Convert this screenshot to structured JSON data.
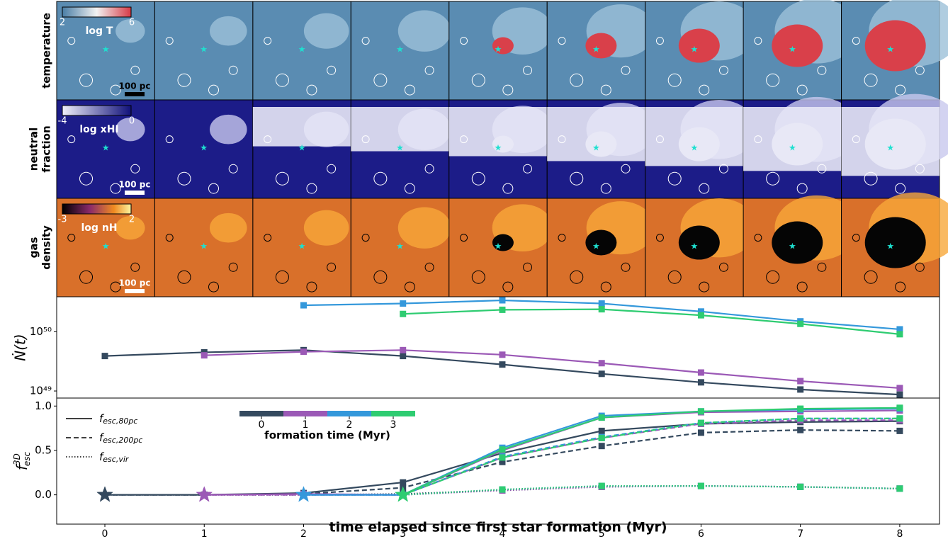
{
  "maps": {
    "rows": [
      {
        "label": [
          "temperature"
        ],
        "colorbar_label": "log T",
        "cbar_ticks": [
          2,
          6
        ],
        "scale_bar": "100 pc"
      },
      {
        "label": [
          "neutral",
          "fraction"
        ],
        "colorbar_label": "log xHI",
        "cbar_ticks": [
          -4,
          0
        ],
        "scale_bar": "100 pc"
      },
      {
        "label": [
          "gas",
          "density"
        ],
        "colorbar_label": "log nH",
        "cbar_ticks": [
          -3,
          2
        ],
        "scale_bar": "100 pc"
      }
    ],
    "columns": 9
  },
  "chart_data": [
    {
      "type": "line",
      "ylabel": "Ṅ(t)",
      "log_y": true,
      "xlim": [
        -0.485,
        8.4
      ],
      "ylim": [
        7.6e+48,
        3.9e+50
      ],
      "xticks": [
        0,
        1,
        2,
        3,
        4,
        5,
        6,
        7,
        8
      ],
      "yticks": [
        {
          "value": 1e+49,
          "label": "10⁴⁹"
        },
        {
          "value": 1e+50,
          "label": "10⁵⁰"
        }
      ],
      "series": [
        {
          "color": "#34495e",
          "x": [
            0,
            1,
            2,
            3,
            4,
            5,
            6,
            7,
            8
          ],
          "values": [
            3.9e+49,
            4.5e+49,
            4.9e+49,
            3.9e+49,
            2.8e+49,
            1.95e+49,
            1.4e+49,
            1.06e+49,
            8.7e+48
          ]
        },
        {
          "color": "#9b59b6",
          "x": [
            1,
            2,
            3,
            4,
            5,
            6,
            7,
            8
          ],
          "values": [
            4e+49,
            4.6e+49,
            4.9e+49,
            4.1e+49,
            2.95e+49,
            2.05e+49,
            1.47e+49,
            1.12e+49
          ]
        },
        {
          "color": "#3498db",
          "x": [
            2,
            3,
            4,
            5,
            6,
            7,
            8
          ],
          "values": [
            2.8e+50,
            3e+50,
            3.4e+50,
            3e+50,
            2.2e+50,
            1.5e+50,
            1.1e+50
          ]
        },
        {
          "color": "#2ecc71",
          "x": [
            3,
            4,
            5,
            6,
            7,
            8
          ],
          "values": [
            2e+50,
            2.35e+50,
            2.4e+50,
            1.9e+50,
            1.36e+50,
            9.1e+49
          ]
        }
      ]
    },
    {
      "type": "line",
      "xlabel": "time elapsed since first star formation (Myr)",
      "ylabel": {
        "main": "f",
        "sup": "3D",
        "sub": "esc"
      },
      "xlim": [
        -0.485,
        8.4
      ],
      "ylim": [
        -0.33,
        1.09
      ],
      "xticks": [
        0,
        1,
        2,
        3,
        4,
        5,
        6,
        7,
        8
      ],
      "yticks": [
        {
          "value": 0,
          "label": "0.0"
        },
        {
          "value": 0.5,
          "label": "0.5"
        },
        {
          "value": 1,
          "label": "1.0"
        }
      ],
      "line_styles": [
        {
          "main": "f",
          "sub": "esc,80pc",
          "dash": "solid"
        },
        {
          "main": "f",
          "sub": "esc,200pc",
          "dash": "dashed"
        },
        {
          "main": "f",
          "sub": "esc,vir",
          "dash": "dotted"
        }
      ],
      "colorbar": {
        "label": "formation time (Myr)",
        "ticks": [
          0,
          1,
          2,
          3
        ],
        "colors": [
          "#34495e",
          "#9b59b6",
          "#3498db",
          "#2ecc71"
        ]
      },
      "series": [
        {
          "color": "#34495e",
          "style": 0,
          "x": [
            0,
            1,
            2,
            3,
            4,
            5,
            6,
            7,
            8
          ],
          "values": [
            0,
            0,
            0.02,
            0.14,
            0.47,
            0.72,
            0.8,
            0.82,
            0.83
          ]
        },
        {
          "color": "#34495e",
          "style": 1,
          "x": [
            0,
            1,
            2,
            3,
            4,
            5,
            6,
            7,
            8
          ],
          "values": [
            0,
            0,
            0.01,
            0.08,
            0.37,
            0.55,
            0.7,
            0.73,
            0.72
          ]
        },
        {
          "color": "#34495e",
          "style": 2,
          "x": [
            0,
            1,
            2,
            3,
            4,
            5,
            6,
            7,
            8
          ],
          "values": [
            0,
            0,
            0,
            0.01,
            0.05,
            0.09,
            0.1,
            0.09,
            0.07
          ]
        },
        {
          "color": "#9b59b6",
          "style": 0,
          "x": [
            1,
            2,
            3,
            4,
            5,
            6,
            7,
            8
          ],
          "values": [
            0,
            0.01,
            0,
            0.5,
            0.87,
            0.93,
            0.94,
            0.95
          ]
        },
        {
          "color": "#9b59b6",
          "style": 1,
          "x": [
            1,
            2,
            3,
            4,
            5,
            6,
            7,
            8
          ],
          "values": [
            0,
            0,
            0,
            0.42,
            0.64,
            0.8,
            0.84,
            0.84
          ]
        },
        {
          "color": "#9b59b6",
          "style": 2,
          "x": [
            1,
            2,
            3,
            4,
            5,
            6,
            7,
            8
          ],
          "values": [
            0,
            0,
            0,
            0.05,
            0.09,
            0.1,
            0.09,
            0.07
          ]
        },
        {
          "color": "#3498db",
          "style": 0,
          "x": [
            2,
            3,
            4,
            5,
            6,
            7,
            8
          ],
          "values": [
            0,
            0,
            0.53,
            0.89,
            0.94,
            0.96,
            0.97
          ]
        },
        {
          "color": "#3498db",
          "style": 1,
          "x": [
            2,
            3,
            4,
            5,
            6,
            7,
            8
          ],
          "values": [
            0,
            0,
            0.43,
            0.65,
            0.81,
            0.86,
            0.86
          ]
        },
        {
          "color": "#3498db",
          "style": 2,
          "x": [
            2,
            3,
            4,
            5,
            6,
            7,
            8
          ],
          "values": [
            0,
            0,
            0.06,
            0.1,
            0.1,
            0.09,
            0.07
          ]
        },
        {
          "color": "#2ecc71",
          "style": 0,
          "x": [
            3,
            4,
            5,
            6,
            7,
            8
          ],
          "values": [
            0,
            0.51,
            0.87,
            0.94,
            0.97,
            0.98
          ]
        },
        {
          "color": "#2ecc71",
          "style": 1,
          "x": [
            3,
            4,
            5,
            6,
            7,
            8
          ],
          "values": [
            0,
            0.42,
            0.64,
            0.81,
            0.86,
            0.86
          ]
        },
        {
          "color": "#2ecc71",
          "style": 2,
          "x": [
            3,
            4,
            5,
            6,
            7,
            8
          ],
          "values": [
            0,
            0.06,
            0.1,
            0.1,
            0.09,
            0.07
          ]
        }
      ]
    }
  ]
}
